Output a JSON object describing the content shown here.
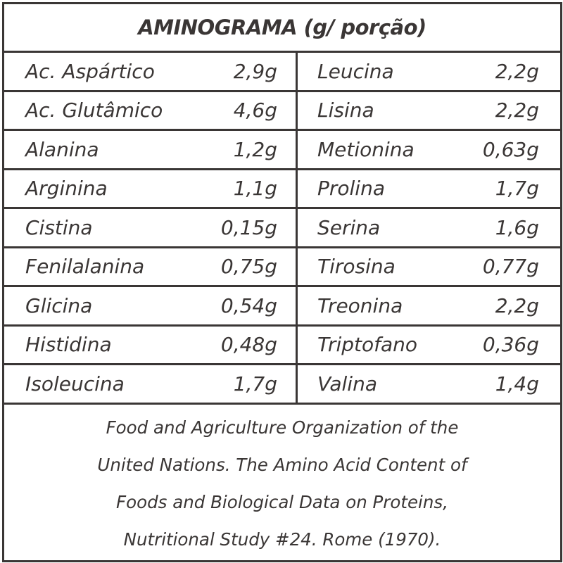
{
  "title": "AMINOGRAMA (g/ porção)",
  "left": [
    {
      "name": "Ac. Aspártico",
      "value": "2,9g"
    },
    {
      "name": "Ac. Glutâmico",
      "value": "4,6g"
    },
    {
      "name": "Alanina",
      "value": "1,2g"
    },
    {
      "name": "Arginina",
      "value": "1,1g"
    },
    {
      "name": "Cistina",
      "value": "0,15g"
    },
    {
      "name": "Fenilalanina",
      "value": "0,75g"
    },
    {
      "name": "Glicina",
      "value": "0,54g"
    },
    {
      "name": "Histidina",
      "value": "0,48g"
    },
    {
      "name": "Isoleucina",
      "value": "1,7g"
    }
  ],
  "right": [
    {
      "name": "Leucina",
      "value": "2,2g"
    },
    {
      "name": "Lisina",
      "value": "2,2g"
    },
    {
      "name": "Metionina",
      "value": "0,63g"
    },
    {
      "name": "Prolina",
      "value": "1,7g"
    },
    {
      "name": "Serina",
      "value": "1,6g"
    },
    {
      "name": "Tirosina",
      "value": "0,77g"
    },
    {
      "name": "Treonina",
      "value": "2,2g"
    },
    {
      "name": "Triptofano",
      "value": "0,36g"
    },
    {
      "name": "Valina",
      "value": "1,4g"
    }
  ],
  "footnote": [
    "Food and Agriculture Organization of the",
    "United Nations. The Amino Acid Content of",
    "Foods and Biological Data on Proteins,",
    "Nutritional Study #24. Rome (1970)."
  ],
  "colors": {
    "ink": "#3a3635",
    "background": "#ffffff"
  }
}
